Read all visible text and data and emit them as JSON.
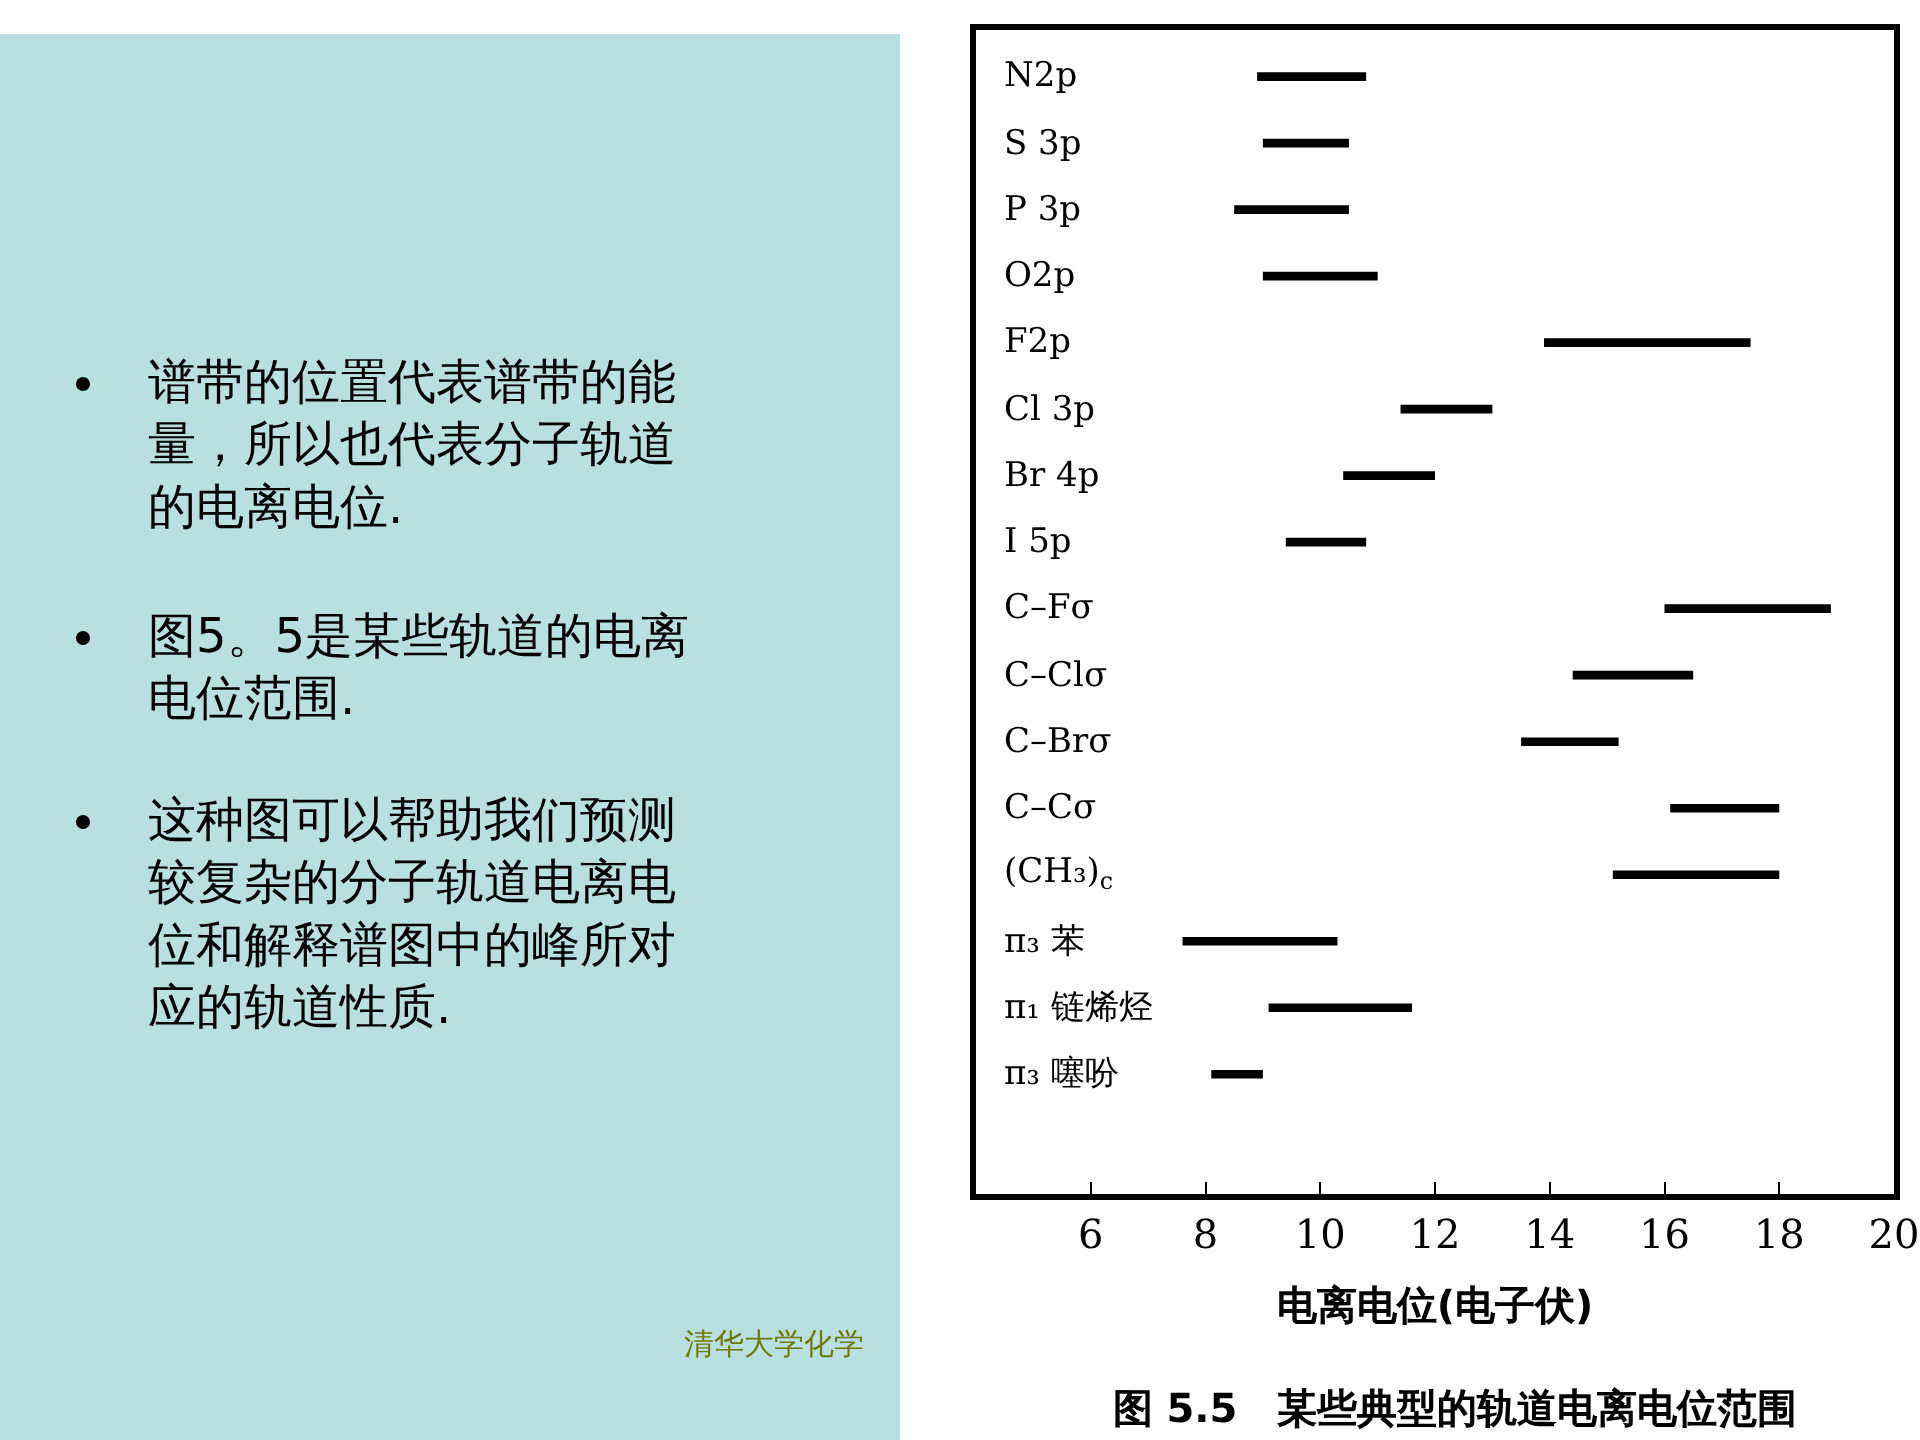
{
  "chart_data": {
    "type": "bar",
    "orientation": "horizontal",
    "title": "图 5.5　某些典型的轨道电离电位范围",
    "xlabel": "电离电位(电子伏)",
    "categories": [
      "N2p",
      "S 3p",
      "P 3p",
      "O2p",
      "F2p",
      "Cl 3p",
      "Br 4p",
      "I 5p",
      "C–Fσ",
      "C–Clσ",
      "C–Brσ",
      "C–Cσ",
      "(CH₃)$_{c}$",
      "π₃ 苯",
      "π₁ 链烯烃",
      "π₃ 噻吩"
    ],
    "base": [
      8.9,
      9.0,
      8.5,
      9.0,
      13.9,
      11.4,
      10.4,
      9.4,
      16.0,
      14.4,
      13.5,
      16.1,
      15.1,
      7.6,
      9.1,
      8.1
    ],
    "values": [
      1.9,
      1.5,
      2.0,
      2.0,
      3.6,
      1.6,
      1.6,
      1.4,
      2.9,
      2.1,
      1.7,
      1.9,
      2.9,
      2.7,
      2.5,
      0.9
    ],
    "color": "#000000",
    "xlim": [
      4,
      20
    ],
    "xticks": [
      6,
      8,
      10,
      12,
      14,
      16,
      18,
      20
    ],
    "annotations": [
      "谱带的位置代表谱带的能量，所以也代表分子轨道的电离电位.",
      "图5。5是某些轨道的电离电位范围.",
      "这种图可以帮助我们预测较复杂的分子轨道电离电位和解释谱图中的峰所对应的轨道性质.",
      "清华大学化学"
    ]
  }
}
